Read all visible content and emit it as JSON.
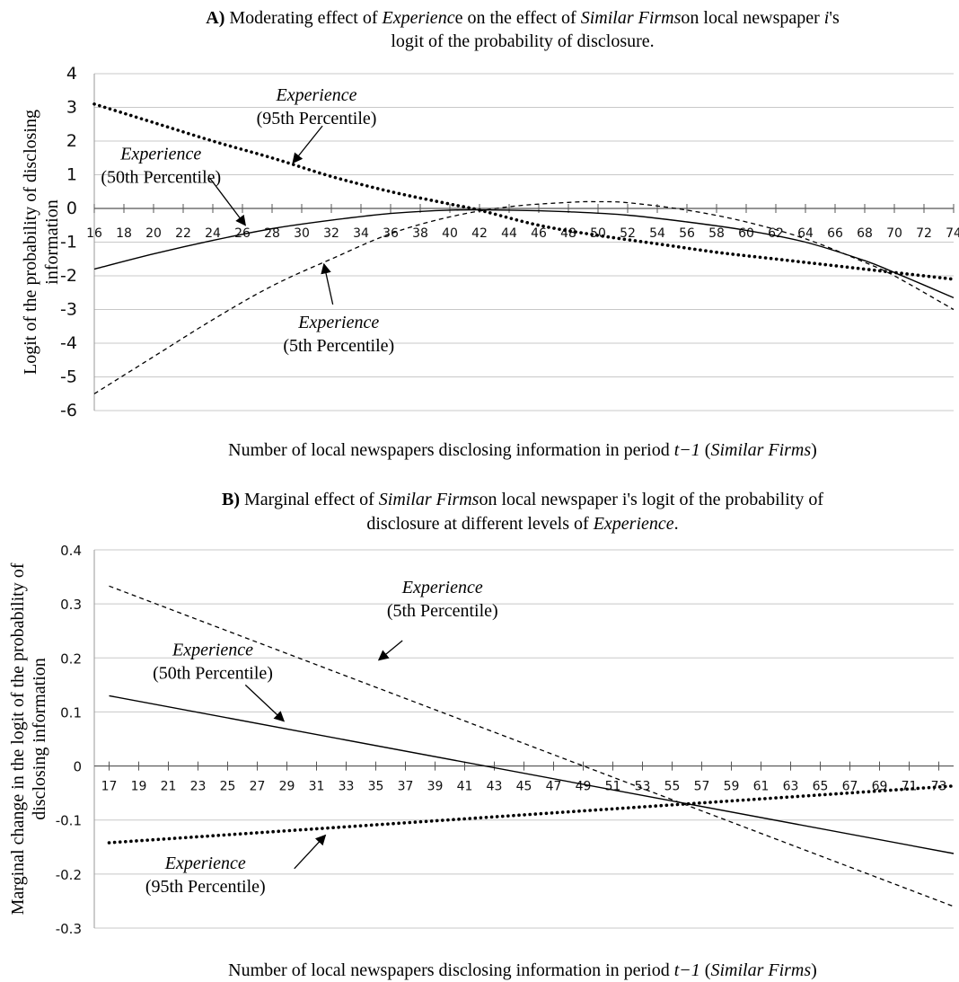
{
  "chart_data": [
    {
      "type": "line",
      "title_parts": [
        {
          "text": "A)",
          "bold": true
        },
        {
          "text": " Moderating effect of "
        },
        {
          "text": "Experienc",
          "italic": true
        },
        {
          "text": "e on the effect of "
        },
        {
          "text": "Similar Firms",
          "italic": true
        },
        {
          "text": "on local newspaper "
        },
        {
          "text": "i",
          "italic": true
        },
        {
          "text": "'s"
        }
      ],
      "title_line2": "logit of the probability of disclosure.",
      "ylabel_line1": "Logit of the probability of disclosing",
      "ylabel_line2": "information",
      "xlabel_parts": [
        {
          "text": "Number of local newspapers disclosing information in period "
        },
        {
          "text": "t−1",
          "italic": true
        },
        {
          "text": " ("
        },
        {
          "text": "Similar Firms",
          "italic": true
        },
        {
          "text": ")"
        }
      ],
      "xlim": [
        16,
        74
      ],
      "ylim": [
        -6,
        4
      ],
      "x_ticks": [
        16,
        18,
        20,
        22,
        24,
        26,
        28,
        30,
        32,
        34,
        36,
        38,
        40,
        42,
        44,
        46,
        48,
        50,
        52,
        54,
        56,
        58,
        60,
        62,
        64,
        66,
        68,
        70,
        72,
        74
      ],
      "y_ticks": [
        4,
        3,
        2,
        1,
        0,
        -1,
        -2,
        -3,
        -4,
        -5,
        -6
      ],
      "grid": true,
      "series": [
        {
          "key": "p95",
          "style": "dotted",
          "x": [
            16,
            20,
            24,
            28,
            32,
            36,
            40,
            42,
            46,
            50,
            54,
            58,
            62,
            66,
            70,
            74
          ],
          "y": [
            3.1,
            2.55,
            2.0,
            1.5,
            0.95,
            0.5,
            0.13,
            -0.05,
            -0.5,
            -0.8,
            -1.05,
            -1.3,
            -1.5,
            -1.7,
            -1.9,
            -2.1
          ]
        },
        {
          "key": "p50",
          "style": "solid",
          "x": [
            16,
            20,
            24,
            28,
            32,
            36,
            40,
            44,
            48,
            52,
            56,
            60,
            64,
            68,
            70,
            74
          ],
          "y": [
            -1.8,
            -1.35,
            -0.95,
            -0.6,
            -0.35,
            -0.15,
            -0.05,
            -0.05,
            -0.1,
            -0.2,
            -0.4,
            -0.65,
            -1.0,
            -1.55,
            -1.9,
            -2.65
          ]
        },
        {
          "key": "p5",
          "style": "dashed",
          "x": [
            16,
            20,
            24,
            28,
            32,
            36,
            40,
            44,
            48,
            50,
            52,
            56,
            60,
            64,
            68,
            70,
            74
          ],
          "y": [
            -5.5,
            -4.4,
            -3.3,
            -2.3,
            -1.5,
            -0.75,
            -0.25,
            0.05,
            0.18,
            0.2,
            0.17,
            -0.05,
            -0.4,
            -0.9,
            -1.6,
            -2.0,
            -3.0
          ]
        }
      ],
      "annotations": [
        {
          "target": "p95",
          "line1": "Experience",
          "line2": "(95th Percentile)",
          "text_x": 31.0,
          "text_y": 3.2,
          "arrow_from": [
            31.4,
            2.45
          ],
          "arrow_to": [
            29.4,
            1.35
          ]
        },
        {
          "target": "p50",
          "line1": "Experience",
          "line2": "(50th Percentile)",
          "text_x": 20.5,
          "text_y": 1.45,
          "arrow_from": [
            23.8,
            0.9
          ],
          "arrow_to": [
            26.2,
            -0.5
          ]
        },
        {
          "target": "p5",
          "line1": "Experience",
          "line2": "(5th Percentile)",
          "text_x": 32.5,
          "text_y": -3.55,
          "arrow_from": [
            32.1,
            -2.85
          ],
          "arrow_to": [
            31.5,
            -1.65
          ]
        }
      ]
    },
    {
      "type": "line",
      "title_parts": [
        {
          "text": "B)",
          "bold": true
        },
        {
          "text": "  Marginal effect of "
        },
        {
          "text": "Similar Firms",
          "italic": true
        },
        {
          "text": "on local newspaper i's logit of the probability of"
        }
      ],
      "title_line2_parts": [
        {
          "text": "disclosure at different levels of "
        },
        {
          "text": "Experience",
          "italic": true
        },
        {
          "text": "."
        }
      ],
      "ylabel_line1": "Marginal change in the logit of the probability of",
      "ylabel_line2": "disclosing information",
      "xlabel_parts": [
        {
          "text": "Number of local newspapers disclosing information in period "
        },
        {
          "text": "t−1",
          "italic": true
        },
        {
          "text": " ("
        },
        {
          "text": "Similar Firms",
          "italic": true
        },
        {
          "text": ")"
        }
      ],
      "xlim": [
        16,
        74
      ],
      "ylim": [
        -0.3,
        0.4
      ],
      "x_ticks": [
        17,
        19,
        21,
        23,
        25,
        27,
        29,
        31,
        33,
        35,
        37,
        39,
        41,
        43,
        45,
        47,
        49,
        51,
        53,
        55,
        57,
        59,
        61,
        63,
        65,
        67,
        69,
        71,
        73
      ],
      "y_ticks": [
        0.4,
        0.3,
        0.2,
        0.1,
        0,
        -0.1,
        -0.2,
        -0.3
      ],
      "y_tick_labels": [
        "0.4",
        "0.3",
        "0.2",
        "0.1",
        "0",
        "-0.1",
        "-0.2",
        "-0.3"
      ],
      "grid": true,
      "series": [
        {
          "key": "p5",
          "style": "dashed",
          "x": [
            17,
            74
          ],
          "y": [
            0.333,
            -0.26
          ]
        },
        {
          "key": "p50",
          "style": "solid",
          "x": [
            17,
            74
          ],
          "y": [
            0.13,
            -0.162
          ]
        },
        {
          "key": "p95",
          "style": "dotted",
          "x": [
            17,
            74
          ],
          "y": [
            -0.142,
            -0.037
          ]
        }
      ],
      "annotations": [
        {
          "target": "p5",
          "line1": "Experience",
          "line2": "(5th Percentile)",
          "text_x": 39.5,
          "text_y": 0.32,
          "arrow_from": [
            36.8,
            0.232
          ],
          "arrow_to": [
            35.2,
            0.196
          ]
        },
        {
          "target": "p50",
          "line1": "Experience",
          "line2": "(50th Percentile)",
          "text_x": 24.0,
          "text_y": 0.205,
          "arrow_from": [
            26.2,
            0.15
          ],
          "arrow_to": [
            28.8,
            0.083
          ]
        },
        {
          "target": "p95",
          "line1": "Experience",
          "line2": "(95th Percentile)",
          "text_x": 23.5,
          "text_y": -0.19,
          "arrow_from": [
            29.5,
            -0.19
          ],
          "arrow_to": [
            31.6,
            -0.128
          ]
        }
      ]
    }
  ]
}
